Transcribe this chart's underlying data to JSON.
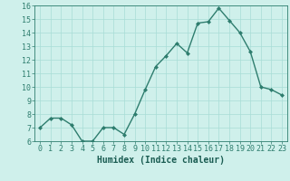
{
  "x": [
    0,
    1,
    2,
    3,
    4,
    5,
    6,
    7,
    8,
    9,
    10,
    11,
    12,
    13,
    14,
    15,
    16,
    17,
    18,
    19,
    20,
    21,
    22,
    23
  ],
  "y": [
    7.0,
    7.7,
    7.7,
    7.2,
    6.0,
    6.0,
    7.0,
    7.0,
    6.5,
    8.0,
    9.8,
    11.5,
    12.3,
    13.2,
    12.5,
    14.7,
    14.8,
    15.8,
    14.9,
    14.0,
    12.6,
    10.0,
    9.8,
    9.4
  ],
  "ylim": [
    6,
    16
  ],
  "xlim": [
    -0.5,
    23.5
  ],
  "yticks": [
    6,
    7,
    8,
    9,
    10,
    11,
    12,
    13,
    14,
    15,
    16
  ],
  "xticks": [
    0,
    1,
    2,
    3,
    4,
    5,
    6,
    7,
    8,
    9,
    10,
    11,
    12,
    13,
    14,
    15,
    16,
    17,
    18,
    19,
    20,
    21,
    22,
    23
  ],
  "xlabel": "Humidex (Indice chaleur)",
  "line_color": "#2e7d6e",
  "marker": "D",
  "marker_size": 2,
  "bg_color": "#cff0eb",
  "grid_color": "#a8ddd6",
  "tick_color": "#2e7d6e",
  "label_color": "#1a5c52",
  "xlabel_fontsize": 7,
  "tick_fontsize": 6
}
